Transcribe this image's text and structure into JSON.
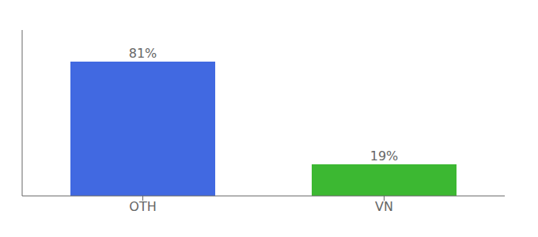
{
  "chart_data": {
    "type": "bar",
    "categories": [
      "OTH",
      "VN"
    ],
    "values": [
      81,
      19
    ],
    "value_labels": [
      "81%",
      "19%"
    ],
    "colors": [
      "#4169E1",
      "#3CB832"
    ],
    "ylim": [
      0,
      100
    ],
    "data_labels": true,
    "tick_labels": "x",
    "grid": false
  }
}
